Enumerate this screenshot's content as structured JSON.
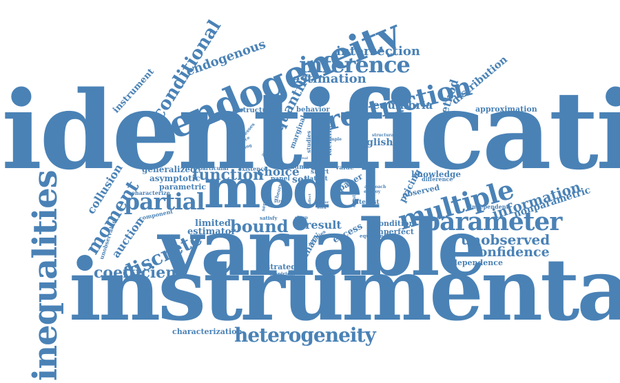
{
  "color": "#4a82b6",
  "words": [
    "identification",
    "instrumental",
    "variable",
    "model",
    "inequalities",
    "endogeneity",
    "restriction",
    "multiple",
    "parameter",
    "partial",
    "inference",
    "heterogeneity",
    "conditional",
    "discrete",
    "moment",
    "bound",
    "function",
    "coefficient",
    "unobserved",
    "confidence",
    "information",
    "intersection",
    "endogenous",
    "estimation",
    "quantile",
    "equilibria",
    "distribution",
    "method",
    "collusion",
    "auction",
    "instrument",
    "nonparametric",
    "choice",
    "estimator",
    "limited",
    "result",
    "english",
    "generalized",
    "asymptotic",
    "parametric",
    "characterization",
    "approximation",
    "independence",
    "strategic",
    "binary",
    "excess",
    "condition",
    "imperfect",
    "pricing",
    "knowledge",
    "observed",
    "paper",
    "set",
    "structure",
    "behavior",
    "identified",
    "marginal",
    "interest",
    "latent",
    "number",
    "short",
    "value",
    "panel",
    "existence",
    "particular",
    "characterize",
    "component",
    "unobservable",
    "independent",
    "difference",
    "equation",
    "empirical",
    "utilities",
    "satisfy",
    "separable",
    "studies",
    "processes",
    "analysis",
    "structural",
    "approach",
    "employ",
    "construct",
    "sequence",
    "building",
    "sample",
    "theory",
    "control",
    "strong",
    "sharp",
    "affect",
    "vector",
    "work",
    "reveal",
    "game",
    "test"
  ]
}
